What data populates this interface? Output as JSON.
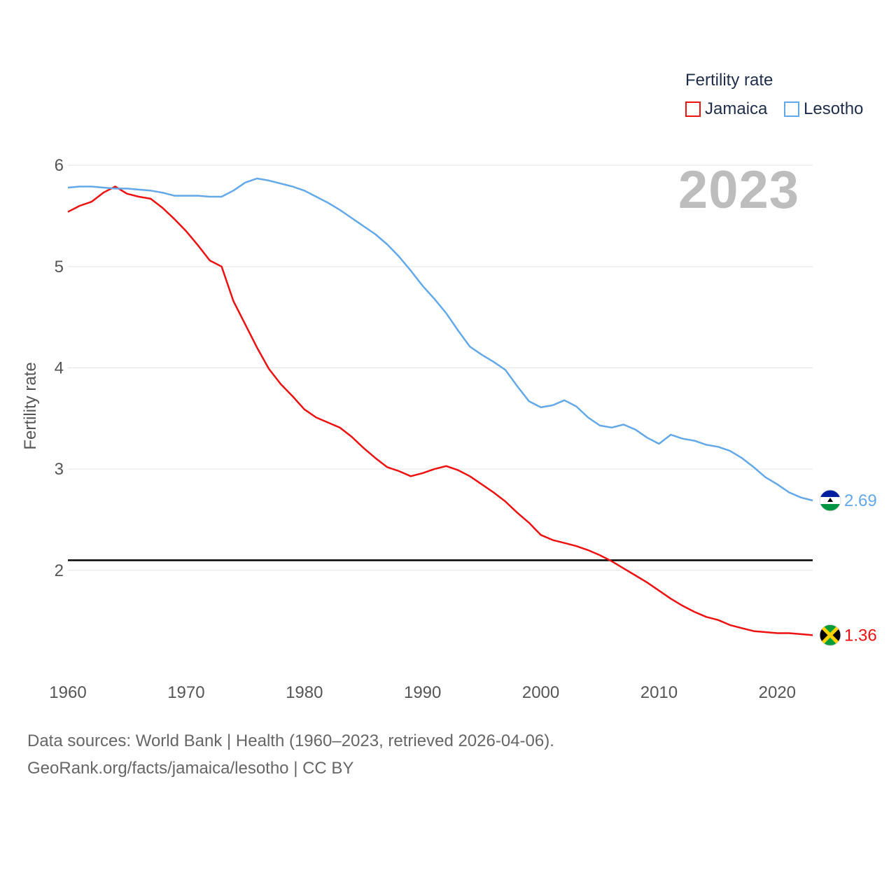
{
  "legend": {
    "title": "Fertility rate",
    "items": [
      {
        "label": "Jamaica",
        "color": "#ee1111"
      },
      {
        "label": "Lesotho",
        "color": "#63a8e8"
      }
    ]
  },
  "year_label": "2023",
  "footer": {
    "line1": "Data sources: World Bank | Health (1960–2023, retrieved 2026-04-06).",
    "line2": "GeoRank.org/facts/jamaica/lesotho | CC BY"
  },
  "chart_data": {
    "type": "line",
    "title": "Fertility rate",
    "xlabel": "",
    "ylabel": "Fertility rate",
    "xlim": [
      1960,
      2023
    ],
    "ylim": [
      1.1,
      6.25
    ],
    "x_ticks": [
      1960,
      1970,
      1980,
      1990,
      2000,
      2010,
      2020
    ],
    "y_ticks": [
      2,
      3,
      4,
      5,
      6
    ],
    "grid": true,
    "reference_line": {
      "y": 2.1,
      "color": "#000000"
    },
    "x": [
      1960,
      1961,
      1962,
      1963,
      1964,
      1965,
      1966,
      1967,
      1968,
      1969,
      1970,
      1971,
      1972,
      1973,
      1974,
      1975,
      1976,
      1977,
      1978,
      1979,
      1980,
      1981,
      1982,
      1983,
      1984,
      1985,
      1986,
      1987,
      1988,
      1989,
      1990,
      1991,
      1992,
      1993,
      1994,
      1995,
      1996,
      1997,
      1998,
      1999,
      2000,
      2001,
      2002,
      2003,
      2004,
      2005,
      2006,
      2007,
      2008,
      2009,
      2010,
      2011,
      2012,
      2013,
      2014,
      2015,
      2016,
      2017,
      2018,
      2019,
      2020,
      2021,
      2022,
      2023
    ],
    "series": [
      {
        "name": "Jamaica",
        "color": "#ee1111",
        "end_label": "1.36",
        "values": [
          5.54,
          5.6,
          5.64,
          5.73,
          5.79,
          5.72,
          5.69,
          5.67,
          5.58,
          5.47,
          5.35,
          5.21,
          5.06,
          5.0,
          4.66,
          4.43,
          4.2,
          3.99,
          3.84,
          3.72,
          3.59,
          3.51,
          3.46,
          3.41,
          3.32,
          3.21,
          3.11,
          3.02,
          2.98,
          2.93,
          2.96,
          3.0,
          3.03,
          2.99,
          2.93,
          2.85,
          2.77,
          2.68,
          2.57,
          2.47,
          2.35,
          2.3,
          2.27,
          2.24,
          2.2,
          2.15,
          2.09,
          2.02,
          1.95,
          1.88,
          1.8,
          1.72,
          1.65,
          1.59,
          1.54,
          1.51,
          1.46,
          1.43,
          1.4,
          1.39,
          1.38,
          1.38,
          1.37,
          1.36
        ]
      },
      {
        "name": "Lesotho",
        "color": "#63a8e8",
        "end_label": "2.69",
        "values": [
          5.78,
          5.79,
          5.79,
          5.78,
          5.77,
          5.77,
          5.76,
          5.75,
          5.73,
          5.7,
          5.7,
          5.7,
          5.69,
          5.69,
          5.75,
          5.83,
          5.87,
          5.85,
          5.82,
          5.79,
          5.75,
          5.69,
          5.63,
          5.56,
          5.48,
          5.4,
          5.32,
          5.22,
          5.1,
          4.96,
          4.81,
          4.68,
          4.54,
          4.37,
          4.21,
          4.13,
          4.06,
          3.98,
          3.82,
          3.67,
          3.61,
          3.63,
          3.68,
          3.62,
          3.51,
          3.43,
          3.41,
          3.44,
          3.39,
          3.31,
          3.25,
          3.34,
          3.3,
          3.28,
          3.24,
          3.22,
          3.18,
          3.11,
          3.02,
          2.92,
          2.85,
          2.77,
          2.72,
          2.69
        ]
      }
    ]
  }
}
